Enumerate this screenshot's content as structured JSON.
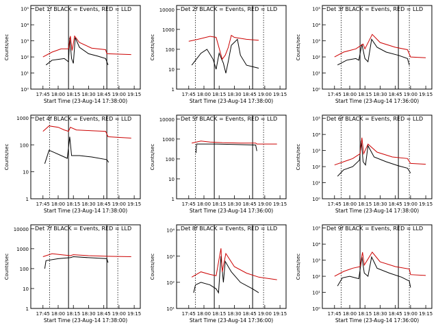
{
  "chart_data": [
    {
      "type": "line",
      "title": "Det 1f BLACK = Events, RED = LLD",
      "xlabel": "Start Time (23-Aug-14 17:38:00)",
      "ylabel": "Counts/sec",
      "ticks": [
        "17:45",
        "18:00",
        "18:15",
        "18:30",
        "18:45",
        "19:00",
        "19:15"
      ],
      "yticks": [
        "10⁰",
        "10¹",
        "10²",
        "10³",
        "10⁴",
        "10⁵"
      ],
      "ylim_log": [
        0,
        5.2
      ],
      "series": [
        {
          "color": "#000000",
          "values": [
            [
              17.8,
              1.5
            ],
            [
              17.9,
              1.8
            ],
            [
              18.0,
              1.85
            ],
            [
              18.1,
              1.9
            ],
            [
              18.17,
              1.7
            ],
            [
              18.19,
              3.2
            ],
            [
              18.22,
              1.9
            ],
            [
              18.25,
              1.6
            ],
            [
              18.28,
              3.2
            ],
            [
              18.35,
              2.6
            ],
            [
              18.5,
              2.2
            ],
            [
              18.65,
              2.05
            ],
            [
              18.78,
              1.9
            ],
            [
              18.82,
              1.5
            ]
          ]
        },
        {
          "color": "#cc0000",
          "values": [
            [
              17.75,
              2.0
            ],
            [
              17.9,
              2.3
            ],
            [
              18.05,
              2.5
            ],
            [
              18.17,
              2.5
            ],
            [
              18.2,
              3.3
            ],
            [
              18.23,
              2.4
            ],
            [
              18.27,
              3.3
            ],
            [
              18.35,
              2.9
            ],
            [
              18.55,
              2.55
            ],
            [
              18.78,
              2.45
            ],
            [
              18.8,
              2.2
            ],
            [
              19.2,
              2.15
            ]
          ]
        }
      ]
    },
    {
      "type": "line",
      "title": "Det 2f BLACK = Events, RED = LLD",
      "xlabel": "Start Time (23-Aug-14 17:38:00)",
      "ylabel": "Counts/sec",
      "ticks": [
        "17:45",
        "18:00",
        "18:15",
        "18:30",
        "18:45",
        "19:00",
        "19:15"
      ],
      "yticks": [
        "1",
        "10",
        "100",
        "1000",
        "10000"
      ],
      "ylim_log": [
        0,
        4.2
      ],
      "series": [
        {
          "color": "#000000",
          "values": [
            [
              17.8,
              1.2
            ],
            [
              17.95,
              1.8
            ],
            [
              18.05,
              2.0
            ],
            [
              18.15,
              1.5
            ],
            [
              18.2,
              1.0
            ],
            [
              18.25,
              1.8
            ],
            [
              18.32,
              1.3
            ],
            [
              18.36,
              0.8
            ],
            [
              18.4,
              1.4
            ],
            [
              18.45,
              2.2
            ],
            [
              18.55,
              2.5
            ],
            [
              18.6,
              1.7
            ],
            [
              18.7,
              1.2
            ],
            [
              18.9,
              1.05
            ]
          ]
        },
        {
          "color": "#cc0000",
          "values": [
            [
              17.75,
              2.4
            ],
            [
              17.9,
              2.5
            ],
            [
              18.1,
              2.65
            ],
            [
              18.2,
              2.6
            ],
            [
              18.3,
              1.5
            ],
            [
              18.35,
              1.7
            ],
            [
              18.4,
              2.1
            ],
            [
              18.45,
              2.7
            ],
            [
              18.5,
              2.6
            ],
            [
              18.7,
              2.5
            ],
            [
              18.9,
              2.45
            ]
          ]
        }
      ]
    },
    {
      "type": "line",
      "title": "Det 3f BLACK = Events, RED = LLD",
      "xlabel": "Start Time (23-Aug-14 17:36:00)",
      "ylabel": "Counts/sec",
      "ticks": [
        "17:45",
        "18:00",
        "18:15",
        "18:30",
        "18:45",
        "19:00",
        "19:15"
      ],
      "yticks": [
        "10⁰",
        "10¹",
        "10²",
        "10³",
        "10⁴",
        "10⁵"
      ],
      "ylim_log": [
        0,
        5.2
      ],
      "series": [
        {
          "color": "#000000",
          "values": [
            [
              17.8,
              1.5
            ],
            [
              17.95,
              1.8
            ],
            [
              18.1,
              1.9
            ],
            [
              18.15,
              1.8
            ],
            [
              18.2,
              2.8
            ],
            [
              18.25,
              1.9
            ],
            [
              18.3,
              1.7
            ],
            [
              18.36,
              3.1
            ],
            [
              18.45,
              2.6
            ],
            [
              18.6,
              2.3
            ],
            [
              18.8,
              2.1
            ],
            [
              18.95,
              1.9
            ],
            [
              18.98,
              1.5
            ]
          ]
        },
        {
          "color": "#cc0000",
          "values": [
            [
              17.75,
              2.0
            ],
            [
              17.9,
              2.3
            ],
            [
              18.1,
              2.5
            ],
            [
              18.22,
              2.8
            ],
            [
              18.25,
              2.5
            ],
            [
              18.37,
              3.4
            ],
            [
              18.5,
              2.9
            ],
            [
              18.75,
              2.6
            ],
            [
              18.95,
              2.45
            ],
            [
              19.0,
              2.0
            ],
            [
              19.25,
              1.95
            ]
          ]
        }
      ]
    },
    {
      "type": "line",
      "title": "Det 4f BLACK = Events, RED = LLD",
      "xlabel": "Start Time (23-Aug-14 17:38:00)",
      "ylabel": "Counts/sec",
      "ticks": [
        "17:45",
        "18:00",
        "18:15",
        "18:30",
        "18:45",
        "19:00",
        "19:15"
      ],
      "yticks": [
        "1",
        "10",
        "100",
        "1000"
      ],
      "ylim_log": [
        0,
        3.1
      ],
      "series": [
        {
          "color": "#000000",
          "values": [
            [
              17.78,
              1.3
            ],
            [
              17.85,
              1.8
            ],
            [
              17.95,
              1.7
            ],
            [
              18.05,
              1.6
            ],
            [
              18.15,
              1.5
            ],
            [
              18.19,
              2.3
            ],
            [
              18.22,
              1.6
            ],
            [
              18.35,
              1.6
            ],
            [
              18.55,
              1.55
            ],
            [
              18.8,
              1.45
            ],
            [
              18.83,
              1.35
            ]
          ]
        },
        {
          "color": "#cc0000",
          "values": [
            [
              17.75,
              2.5
            ],
            [
              17.85,
              2.7
            ],
            [
              18.0,
              2.65
            ],
            [
              18.1,
              2.55
            ],
            [
              18.17,
              2.5
            ],
            [
              18.2,
              2.65
            ],
            [
              18.3,
              2.55
            ],
            [
              18.55,
              2.52
            ],
            [
              18.78,
              2.5
            ],
            [
              18.82,
              2.3
            ],
            [
              19.2,
              2.25
            ]
          ]
        }
      ]
    },
    {
      "type": "line",
      "title": "Det 5f BLACK = Events, RED = LLD",
      "xlabel": "Start Time (23-Aug-14 17:36:00)",
      "ylabel": "Counts/sec",
      "ticks": [
        "17:45",
        "18:00",
        "18:15",
        "18:30",
        "18:45",
        "19:00",
        "19:15"
      ],
      "yticks": [
        "1",
        "10",
        "100",
        "1000",
        "10000"
      ],
      "ylim_log": [
        0,
        4.2
      ],
      "series": [
        {
          "color": "#000000",
          "values": [
            [
              17.87,
              2.3
            ],
            [
              17.88,
              2.75
            ],
            [
              18.2,
              2.75
            ],
            [
              18.5,
              2.73
            ],
            [
              18.85,
              2.7
            ],
            [
              18.87,
              2.4
            ]
          ]
        },
        {
          "color": "#cc0000",
          "values": [
            [
              17.8,
              2.8
            ],
            [
              17.95,
              2.9
            ],
            [
              18.1,
              2.85
            ],
            [
              18.3,
              2.82
            ],
            [
              18.6,
              2.8
            ],
            [
              18.85,
              2.8
            ],
            [
              18.87,
              2.75
            ],
            [
              19.2,
              2.75
            ]
          ]
        }
      ]
    },
    {
      "type": "line",
      "title": "Det 6f BLACK = Events, RED = LLD",
      "xlabel": "Start Time (23-Aug-14 17:38:00)",
      "ylabel": "Counts/sec",
      "ticks": [
        "17:45",
        "18:00",
        "18:15",
        "18:30",
        "18:45",
        "19:00",
        "19:15"
      ],
      "yticks": [
        "10⁰",
        "10¹",
        "10²",
        "10³",
        "10⁴",
        "10⁵"
      ],
      "ylim_log": [
        0,
        5.2
      ],
      "series": [
        {
          "color": "#000000",
          "values": [
            [
              17.8,
              1.4
            ],
            [
              17.9,
              1.8
            ],
            [
              18.05,
              2.0
            ],
            [
              18.16,
              2.4
            ],
            [
              18.19,
              3.6
            ],
            [
              18.22,
              2.3
            ],
            [
              18.26,
              2.1
            ],
            [
              18.3,
              3.3
            ],
            [
              18.4,
              2.6
            ],
            [
              18.6,
              2.3
            ],
            [
              18.8,
              2.05
            ],
            [
              18.95,
              1.9
            ],
            [
              19.0,
              1.6
            ]
          ]
        },
        {
          "color": "#cc0000",
          "values": [
            [
              17.75,
              2.1
            ],
            [
              17.9,
              2.3
            ],
            [
              18.05,
              2.5
            ],
            [
              18.17,
              2.8
            ],
            [
              18.2,
              3.8
            ],
            [
              18.23,
              2.8
            ],
            [
              18.3,
              3.4
            ],
            [
              18.45,
              2.9
            ],
            [
              18.7,
              2.6
            ],
            [
              18.95,
              2.5
            ],
            [
              19.0,
              2.2
            ],
            [
              19.25,
              2.15
            ]
          ]
        }
      ]
    },
    {
      "type": "line",
      "title": "Det 7f BLACK = Events, RED = LLD",
      "xlabel": "Start Time (23-Aug-14 17:38:00)",
      "ylabel": "Counts/sec",
      "ticks": [
        "17:45",
        "18:00",
        "18:15",
        "18:30",
        "18:45",
        "19:00",
        "19:15"
      ],
      "yticks": [
        "1",
        "10",
        "100",
        "1000",
        "10000"
      ],
      "ylim_log": [
        0,
        4.2
      ],
      "series": [
        {
          "color": "#000000",
          "values": [
            [
              17.78,
              2.0
            ],
            [
              17.8,
              2.4
            ],
            [
              18.0,
              2.5
            ],
            [
              18.2,
              2.55
            ],
            [
              18.25,
              2.6
            ],
            [
              18.5,
              2.55
            ],
            [
              18.8,
              2.5
            ],
            [
              18.82,
              2.3
            ]
          ]
        },
        {
          "color": "#cc0000",
          "values": [
            [
              17.75,
              2.6
            ],
            [
              17.9,
              2.75
            ],
            [
              18.05,
              2.7
            ],
            [
              18.2,
              2.65
            ],
            [
              18.25,
              2.7
            ],
            [
              18.5,
              2.65
            ],
            [
              18.8,
              2.62
            ],
            [
              19.2,
              2.6
            ]
          ]
        }
      ]
    },
    {
      "type": "line",
      "title": "Det 8f BLACK = Events, RED = LLD",
      "xlabel": "Start Time (23-Aug-14 17:36:00)",
      "ylabel": "Counts/sec",
      "ticks": [
        "17:45",
        "18:00",
        "18:15",
        "18:30",
        "18:45",
        "19:00",
        "19:15"
      ],
      "yticks": [
        "10¹",
        "10²",
        "10³",
        "10⁴"
      ],
      "ylim_log": [
        1,
        4.2
      ],
      "series": [
        {
          "color": "#000000",
          "values": [
            [
              17.83,
              1.6
            ],
            [
              17.86,
              1.9
            ],
            [
              17.95,
              2.0
            ],
            [
              18.1,
              1.9
            ],
            [
              18.2,
              1.75
            ],
            [
              18.24,
              1.6
            ],
            [
              18.28,
              3.0
            ],
            [
              18.32,
              2.0
            ],
            [
              18.35,
              2.8
            ],
            [
              18.45,
              2.4
            ],
            [
              18.6,
              2.0
            ],
            [
              18.8,
              1.75
            ],
            [
              18.9,
              1.6
            ]
          ]
        },
        {
          "color": "#cc0000",
          "values": [
            [
              17.8,
              2.2
            ],
            [
              17.95,
              2.4
            ],
            [
              18.1,
              2.3
            ],
            [
              18.2,
              2.25
            ],
            [
              18.28,
              3.3
            ],
            [
              18.3,
              2.4
            ],
            [
              18.36,
              3.1
            ],
            [
              18.5,
              2.6
            ],
            [
              18.7,
              2.35
            ],
            [
              18.9,
              2.2
            ],
            [
              19.2,
              2.1
            ]
          ]
        }
      ]
    },
    {
      "type": "line",
      "title": "Det 9f BLACK = Events, RED = LLD",
      "xlabel": "Start Time (23-Aug-14 17:36:00)",
      "ylabel": "Counts/sec",
      "ticks": [
        "17:45",
        "18:00",
        "18:15",
        "18:30",
        "18:45",
        "19:00",
        "19:15"
      ],
      "yticks": [
        "10⁰",
        "10¹",
        "10²",
        "10³",
        "10⁴",
        "10⁵"
      ],
      "ylim_log": [
        0,
        5.2
      ],
      "series": [
        {
          "color": "#000000",
          "values": [
            [
              17.8,
              1.4
            ],
            [
              17.88,
              1.9
            ],
            [
              18.0,
              2.0
            ],
            [
              18.15,
              1.85
            ],
            [
              18.2,
              3.2
            ],
            [
              18.24,
              2.2
            ],
            [
              18.3,
              2.0
            ],
            [
              18.36,
              3.2
            ],
            [
              18.45,
              2.5
            ],
            [
              18.65,
              2.2
            ],
            [
              18.85,
              1.95
            ],
            [
              18.98,
              1.7
            ],
            [
              19.0,
              1.3
            ]
          ]
        },
        {
          "color": "#cc0000",
          "values": [
            [
              17.75,
              2.0
            ],
            [
              17.9,
              2.3
            ],
            [
              18.05,
              2.5
            ],
            [
              18.17,
              2.6
            ],
            [
              18.21,
              3.5
            ],
            [
              18.24,
              2.7
            ],
            [
              18.37,
              3.5
            ],
            [
              18.5,
              2.9
            ],
            [
              18.75,
              2.6
            ],
            [
              18.98,
              2.45
            ],
            [
              19.0,
              2.1
            ],
            [
              19.25,
              2.05
            ]
          ]
        }
      ]
    }
  ]
}
